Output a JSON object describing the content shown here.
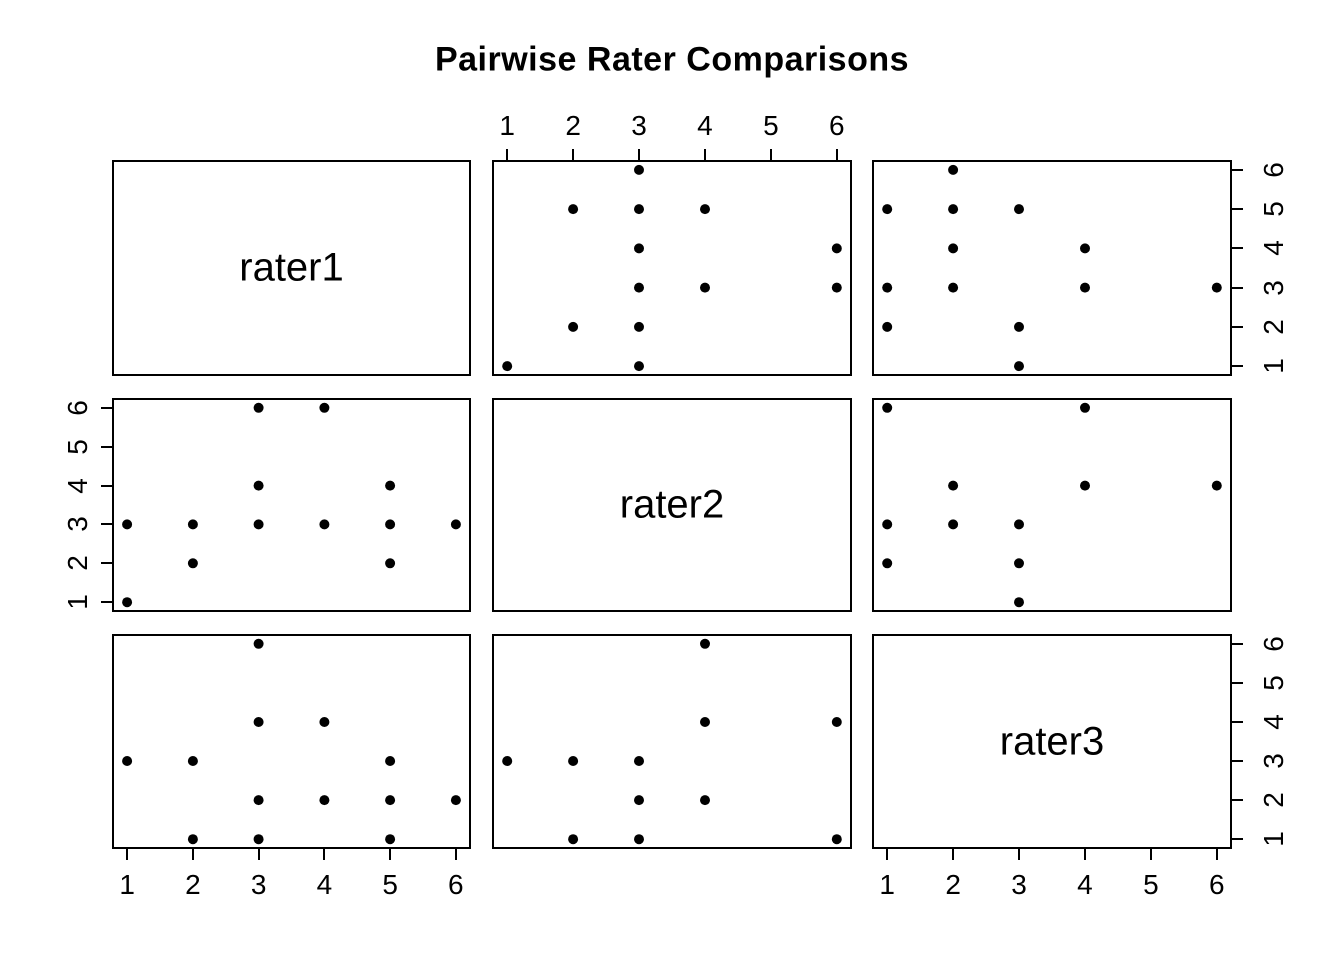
{
  "figure": {
    "background": "#ffffff",
    "foreground": "#000000"
  },
  "chart_data": {
    "type": "scatter",
    "subtype": "pairs-matrix",
    "title": "Pairwise Rater Comparisons",
    "variables": [
      "rater1",
      "rater2",
      "rater3"
    ],
    "axis_range": [
      1,
      6
    ],
    "axis_ticks": [
      1,
      2,
      3,
      4,
      5,
      6
    ],
    "point_color": "#000000",
    "point_radius": 5,
    "grid": false,
    "diagonals": [
      {
        "row": 0,
        "col": 0,
        "label": "rater1"
      },
      {
        "row": 1,
        "col": 1,
        "label": "rater2"
      },
      {
        "row": 2,
        "col": 2,
        "label": "rater3"
      }
    ],
    "panels": [
      {
        "row": 0,
        "col": 1,
        "x_var": "rater2",
        "y_var": "rater1",
        "points": [
          [
            3,
            6
          ],
          [
            2,
            5
          ],
          [
            3,
            5
          ],
          [
            4,
            5
          ],
          [
            3,
            4
          ],
          [
            6,
            4
          ],
          [
            3,
            3
          ],
          [
            4,
            3
          ],
          [
            6,
            3
          ],
          [
            2,
            2
          ],
          [
            3,
            2
          ],
          [
            1,
            1
          ],
          [
            3,
            1
          ]
        ]
      },
      {
        "row": 0,
        "col": 2,
        "x_var": "rater3",
        "y_var": "rater1",
        "points": [
          [
            2,
            6
          ],
          [
            1,
            5
          ],
          [
            2,
            5
          ],
          [
            3,
            5
          ],
          [
            2,
            4
          ],
          [
            4,
            4
          ],
          [
            1,
            3
          ],
          [
            2,
            3
          ],
          [
            4,
            3
          ],
          [
            6,
            3
          ],
          [
            1,
            2
          ],
          [
            3,
            2
          ],
          [
            3,
            1
          ]
        ]
      },
      {
        "row": 1,
        "col": 0,
        "x_var": "rater1",
        "y_var": "rater2",
        "points": [
          [
            3,
            6
          ],
          [
            4,
            6
          ],
          [
            3,
            4
          ],
          [
            5,
            4
          ],
          [
            1,
            3
          ],
          [
            2,
            3
          ],
          [
            3,
            3
          ],
          [
            4,
            3
          ],
          [
            5,
            3
          ],
          [
            6,
            3
          ],
          [
            2,
            2
          ],
          [
            5,
            2
          ],
          [
            1,
            1
          ]
        ]
      },
      {
        "row": 1,
        "col": 2,
        "x_var": "rater3",
        "y_var": "rater2",
        "points": [
          [
            1,
            6
          ],
          [
            4,
            6
          ],
          [
            2,
            4
          ],
          [
            4,
            4
          ],
          [
            6,
            4
          ],
          [
            1,
            3
          ],
          [
            2,
            3
          ],
          [
            3,
            3
          ],
          [
            1,
            2
          ],
          [
            3,
            2
          ],
          [
            3,
            1
          ]
        ]
      },
      {
        "row": 2,
        "col": 0,
        "x_var": "rater1",
        "y_var": "rater3",
        "points": [
          [
            3,
            6
          ],
          [
            3,
            4
          ],
          [
            4,
            4
          ],
          [
            1,
            3
          ],
          [
            2,
            3
          ],
          [
            5,
            3
          ],
          [
            3,
            2
          ],
          [
            4,
            2
          ],
          [
            5,
            2
          ],
          [
            6,
            2
          ],
          [
            2,
            1
          ],
          [
            3,
            1
          ],
          [
            5,
            1
          ]
        ]
      },
      {
        "row": 2,
        "col": 1,
        "x_var": "rater2",
        "y_var": "rater3",
        "points": [
          [
            4,
            6
          ],
          [
            4,
            4
          ],
          [
            6,
            4
          ],
          [
            1,
            3
          ],
          [
            2,
            3
          ],
          [
            3,
            3
          ],
          [
            3,
            2
          ],
          [
            4,
            2
          ],
          [
            2,
            1
          ],
          [
            3,
            1
          ],
          [
            6,
            1
          ]
        ]
      }
    ],
    "axes": [
      {
        "side": "top",
        "col": 1,
        "labels": [
          "1",
          "2",
          "3",
          "4",
          "5",
          "6"
        ]
      },
      {
        "side": "right",
        "row": 0,
        "labels": [
          "1",
          "2",
          "3",
          "4",
          "5",
          "6"
        ]
      },
      {
        "side": "left",
        "row": 1,
        "labels": [
          "1",
          "2",
          "3",
          "4",
          "5",
          "6"
        ]
      },
      {
        "side": "bottom",
        "col": 0,
        "labels": [
          "1",
          "2",
          "3",
          "4",
          "5",
          "6"
        ]
      },
      {
        "side": "bottom",
        "col": 2,
        "labels": [
          "1",
          "2",
          "3",
          "4",
          "5",
          "6"
        ]
      },
      {
        "side": "right",
        "row": 2,
        "labels": [
          "1",
          "2",
          "3",
          "4",
          "5",
          "6"
        ]
      }
    ]
  }
}
